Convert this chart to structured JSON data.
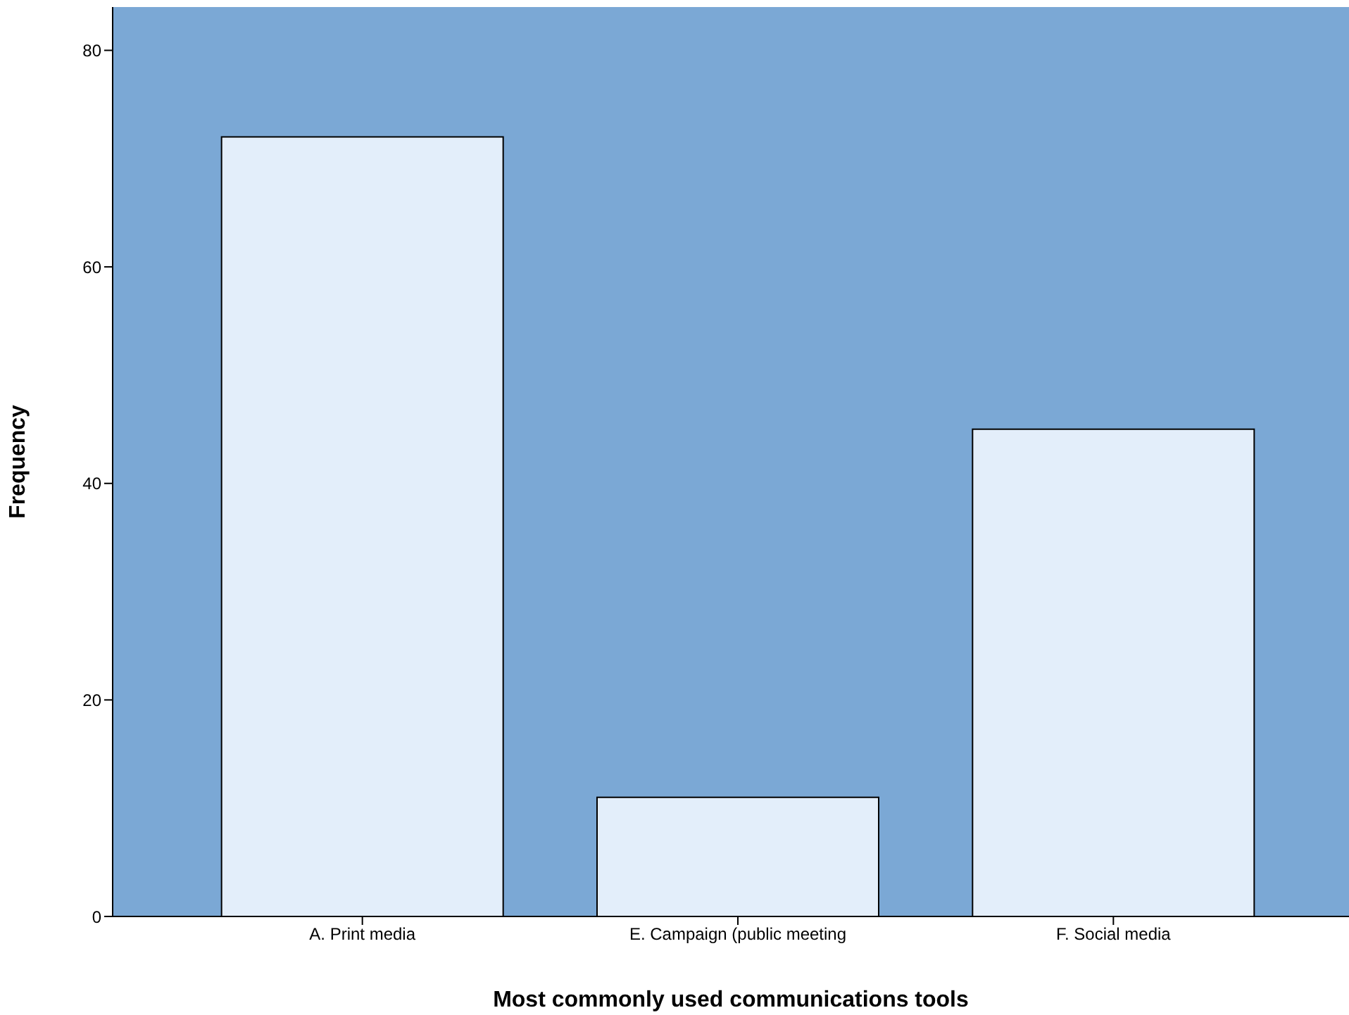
{
  "chart_data": {
    "type": "bar",
    "xlabel": "Most commonly used communications tools",
    "ylabel": "Frequency",
    "categories": [
      "A. Print media",
      "E. Campaign (public meeting",
      "F. Social media"
    ],
    "values": [
      72,
      11,
      45
    ],
    "color": "#e3eefa",
    "ylim": [
      0,
      84
    ],
    "yticks": [
      0,
      20,
      40,
      60,
      80
    ],
    "grid": false,
    "legend": false
  }
}
